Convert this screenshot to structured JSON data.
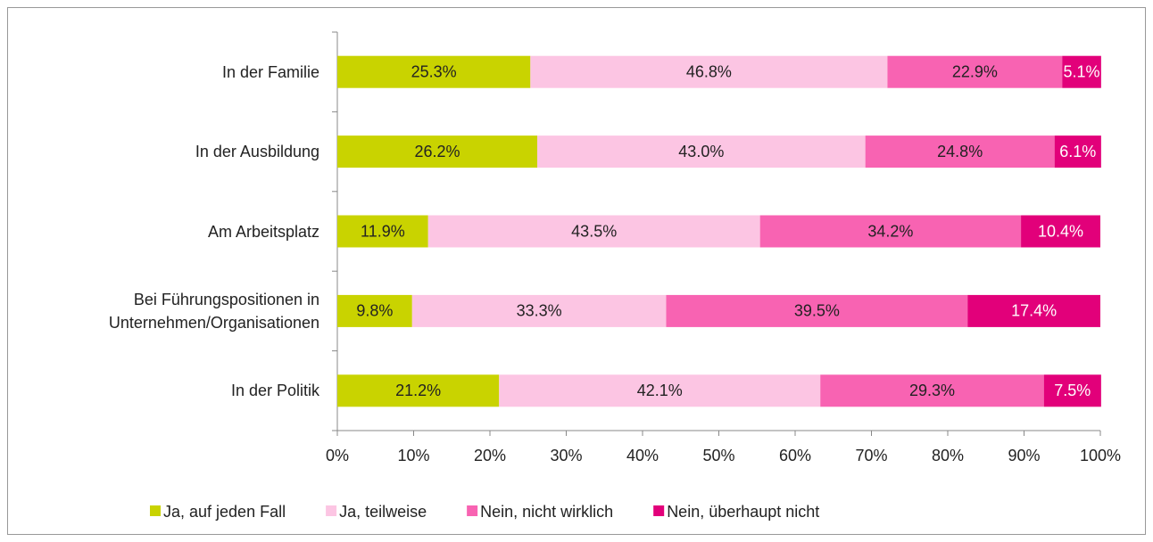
{
  "chart_data": {
    "type": "stacked_bar_horizontal",
    "categories": [
      "In der Familie",
      "In der Ausbildung",
      "Am Arbeitsplatz",
      "Bei Führungspositionen in Unternehmen/Organisationen",
      "In der Politik"
    ],
    "series": [
      {
        "name": "Ja, auf jeden Fall",
        "color": "#c9d300",
        "label_color": "#222222",
        "values": [
          25.3,
          26.2,
          11.9,
          9.8,
          21.2
        ],
        "value_labels": [
          "25.3%",
          "26.2%",
          "11.9%",
          "9.8%",
          "21.2%"
        ]
      },
      {
        "name": "Ja, teilweise",
        "color": "#fcc5e3",
        "label_color": "#222222",
        "values": [
          46.8,
          43.0,
          43.5,
          33.3,
          42.1
        ],
        "value_labels": [
          "46.8%",
          "43.0%",
          "43.5%",
          "33.3%",
          "42.1%"
        ]
      },
      {
        "name": "Nein, nicht wirklich",
        "color": "#f863b2",
        "label_color": "#222222",
        "values": [
          22.9,
          24.8,
          34.2,
          39.5,
          29.3
        ],
        "value_labels": [
          "22.9%",
          "24.8%",
          "34.2%",
          "39.5%",
          "29.3%"
        ]
      },
      {
        "name": "Nein, überhaupt nicht",
        "color": "#e2007a",
        "label_color": "#ffffff",
        "values": [
          5.1,
          6.1,
          10.4,
          17.4,
          7.5
        ],
        "value_labels": [
          "5.1%",
          "6.1%",
          "10.4%",
          "17.4%",
          "7.5%"
        ]
      }
    ],
    "xlim": [
      0,
      100
    ],
    "xticks": [
      {
        "value": 0,
        "label": "0%"
      },
      {
        "value": 10,
        "label": "10%"
      },
      {
        "value": 20,
        "label": "20%"
      },
      {
        "value": 30,
        "label": "30%"
      },
      {
        "value": 40,
        "label": "40%"
      },
      {
        "value": 50,
        "label": "50%"
      },
      {
        "value": 60,
        "label": "60%"
      },
      {
        "value": 70,
        "label": "70%"
      },
      {
        "value": 80,
        "label": "80%"
      },
      {
        "value": 90,
        "label": "90%"
      },
      {
        "value": 100,
        "label": "100%"
      }
    ],
    "legend": "bottom"
  }
}
